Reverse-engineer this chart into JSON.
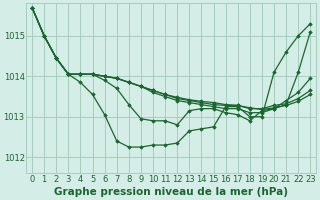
{
  "title": "Graphe pression niveau de la mer (hPa)",
  "background_color": "#d4ede6",
  "grid_color": "#a0c8b8",
  "line_color": "#1a6630",
  "x_ticks": [
    0,
    1,
    2,
    3,
    4,
    5,
    6,
    7,
    8,
    9,
    10,
    11,
    12,
    13,
    14,
    15,
    16,
    17,
    18,
    19,
    20,
    21,
    22,
    23
  ],
  "y_ticks": [
    1012,
    1013,
    1014,
    1015
  ],
  "ylim": [
    1011.6,
    1015.8
  ],
  "xlim": [
    -0.5,
    23.5
  ],
  "series": [
    [
      1015.7,
      1015.0,
      1014.45,
      1014.05,
      1013.85,
      1013.55,
      1013.05,
      1012.4,
      1012.25,
      1012.25,
      1012.3,
      1012.3,
      1012.35,
      1012.65,
      1012.7,
      1012.75,
      1013.25,
      1013.25,
      1013.0,
      1013.0,
      1014.1,
      1014.6,
      1015.0,
      1015.3
    ],
    [
      1015.7,
      1015.0,
      1014.45,
      1014.05,
      1014.05,
      1014.05,
      1014.0,
      1013.95,
      1013.85,
      1013.75,
      1013.6,
      1013.5,
      1013.4,
      1013.35,
      1013.3,
      1013.25,
      1013.2,
      1013.2,
      1013.1,
      1013.1,
      1013.2,
      1013.3,
      1014.1,
      1015.1
    ],
    [
      1015.7,
      1015.0,
      1014.45,
      1014.05,
      1014.05,
      1014.05,
      1014.0,
      1013.95,
      1013.85,
      1013.75,
      1013.65,
      1013.55,
      1013.45,
      1013.4,
      1013.35,
      1013.3,
      1013.28,
      1013.28,
      1013.2,
      1013.2,
      1013.28,
      1013.32,
      1013.45,
      1013.65
    ],
    [
      1015.7,
      1015.0,
      1014.45,
      1014.05,
      1014.05,
      1014.05,
      1014.0,
      1013.95,
      1013.85,
      1013.75,
      1013.65,
      1013.55,
      1013.48,
      1013.42,
      1013.38,
      1013.35,
      1013.3,
      1013.28,
      1013.22,
      1013.18,
      1013.22,
      1013.28,
      1013.38,
      1013.55
    ],
    [
      1015.7,
      1015.0,
      1014.45,
      1014.05,
      1014.05,
      1014.05,
      1013.9,
      1013.7,
      1013.3,
      1012.95,
      1012.9,
      1012.9,
      1012.8,
      1013.15,
      1013.2,
      1013.2,
      1013.1,
      1013.05,
      1012.9,
      1013.15,
      1013.2,
      1013.4,
      1013.6,
      1013.95
    ]
  ],
  "title_fontsize": 7.5,
  "tick_fontsize": 6.0,
  "marker": "D",
  "marker_size": 1.8,
  "linewidth": 0.9
}
